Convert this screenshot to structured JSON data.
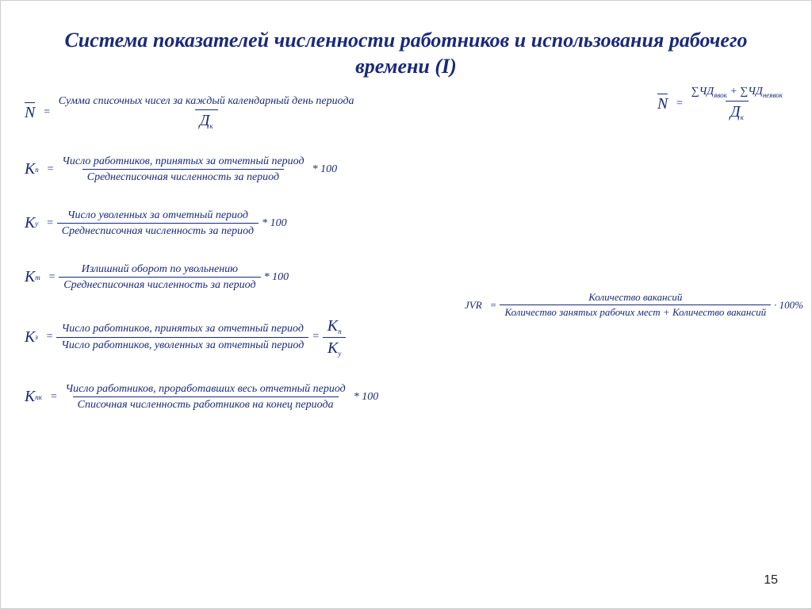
{
  "title": "Система показателей численности работников и использования рабочего времени (I)",
  "page_number": "15",
  "colors": {
    "text": "#1a2a7a",
    "background": "#ffffff"
  },
  "typography": {
    "title_fontsize": 26,
    "formula_fontsize": 14,
    "font_family": "Times New Roman, serif"
  },
  "formulas": {
    "f1": {
      "lhs_overline": "N",
      "num": "Сумма списочных чисел за каждый календарный день периода",
      "den_main": "Д",
      "den_sub": "к"
    },
    "f1r": {
      "lhs_overline": "N",
      "num_html": "∑ЧД<sub>явок</sub> + ∑ЧД<sub>неявок</sub>",
      "den_main": "Д",
      "den_sub": "к"
    },
    "f2": {
      "lhs_main": "К",
      "lhs_sub": "п",
      "num": "Число работников, принятых за отчетный период",
      "den": "Среднесписочная численность за период",
      "tail": "* 100"
    },
    "f3": {
      "lhs_main": "К",
      "lhs_sub": "у",
      "num": "Число уволенных за отчетный период",
      "den": "Среднесписочная численность за период",
      "tail": "* 100"
    },
    "f4": {
      "lhs_main": "К",
      "lhs_sub": "т",
      "num": "Излишний оборот по увольнению",
      "den": "Среднесписочная численность за период",
      "tail": "* 100"
    },
    "jvr": {
      "lhs": "JVR",
      "num": "Количество вакансий",
      "den": "Количество занятых рабочих мест + Количество вакансий",
      "tail": "· 100%"
    },
    "f5": {
      "lhs_main": "К",
      "lhs_sub": "з",
      "num": "Число работников, принятых за отчетный период",
      "den": "Число работников, уволенных за отчетный период",
      "rhs_num_main": "К",
      "rhs_num_sub": "п",
      "rhs_den_main": "К",
      "rhs_den_sub": "у"
    },
    "f6": {
      "lhs_main": "К",
      "lhs_sub": "пк",
      "num": "Число работников, проработавших весь отчетный период",
      "den": "Списочная численность работников на конец периода",
      "tail": "* 100"
    }
  }
}
